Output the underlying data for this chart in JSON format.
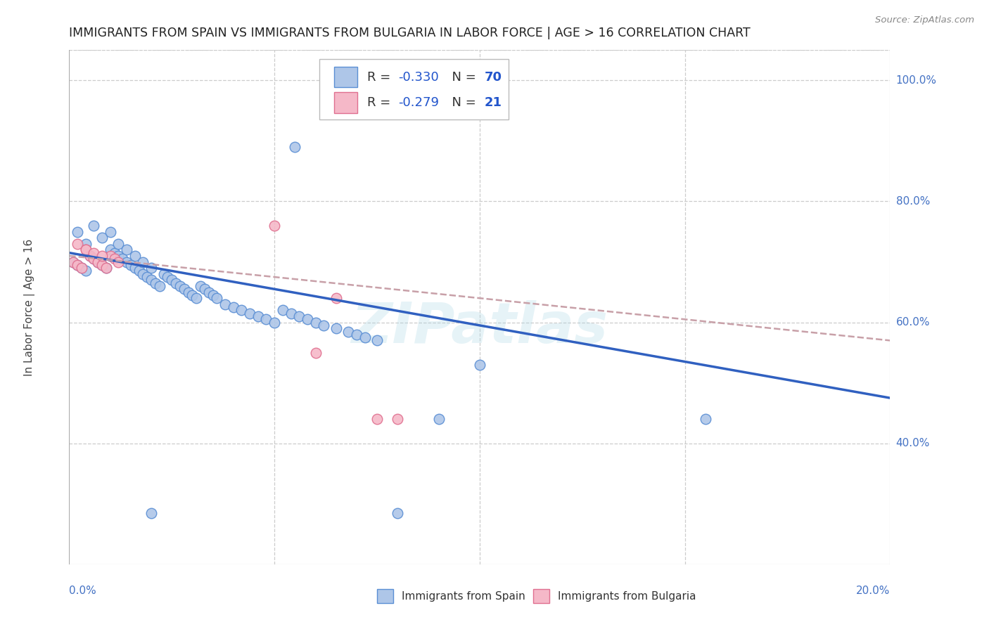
{
  "title": "IMMIGRANTS FROM SPAIN VS IMMIGRANTS FROM BULGARIA IN LABOR FORCE | AGE > 16 CORRELATION CHART",
  "source": "Source: ZipAtlas.com",
  "ylabel": "In Labor Force | Age > 16",
  "watermark": "ZIPatlas",
  "color_spain_fill": "#aec6e8",
  "color_spain_edge": "#5b8fd4",
  "color_bulgaria_fill": "#f5b8c8",
  "color_bulgaria_edge": "#e07090",
  "color_spain_line": "#3060c0",
  "color_bulgaria_line": "#ccaaaa",
  "color_axis_blue": "#4472c4",
  "color_grid": "#cccccc",
  "color_title": "#222222",
  "legend_r1": "-0.330",
  "legend_n1": "70",
  "legend_r2": "-0.279",
  "legend_n2": "21",
  "xlim": [
    0.0,
    0.2
  ],
  "ylim": [
    0.2,
    1.05
  ],
  "ytick_vals": [
    1.0,
    0.8,
    0.6,
    0.4
  ],
  "ytick_labels": [
    "100.0%",
    "80.0%",
    "60.0%",
    "40.0%"
  ],
  "xtick_vals": [
    0.0,
    0.05,
    0.1,
    0.15,
    0.2
  ],
  "xtick_labels_show": [
    "0.0%",
    "20.0%"
  ],
  "spain_x": [
    0.001,
    0.002,
    0.003,
    0.004,
    0.005,
    0.006,
    0.007,
    0.008,
    0.009,
    0.01,
    0.011,
    0.012,
    0.013,
    0.014,
    0.015,
    0.016,
    0.017,
    0.018,
    0.019,
    0.02,
    0.021,
    0.022,
    0.023,
    0.024,
    0.025,
    0.026,
    0.027,
    0.028,
    0.029,
    0.03,
    0.031,
    0.032,
    0.033,
    0.034,
    0.035,
    0.036,
    0.038,
    0.04,
    0.042,
    0.044,
    0.046,
    0.048,
    0.05,
    0.052,
    0.054,
    0.056,
    0.058,
    0.06,
    0.062,
    0.065,
    0.068,
    0.07,
    0.072,
    0.075,
    0.002,
    0.004,
    0.006,
    0.008,
    0.01,
    0.012,
    0.014,
    0.016,
    0.018,
    0.02,
    0.055,
    0.09,
    0.155,
    0.02,
    0.08,
    0.1
  ],
  "spain_y": [
    0.7,
    0.695,
    0.69,
    0.685,
    0.71,
    0.705,
    0.7,
    0.695,
    0.69,
    0.72,
    0.715,
    0.71,
    0.705,
    0.7,
    0.695,
    0.69,
    0.685,
    0.68,
    0.675,
    0.67,
    0.665,
    0.66,
    0.68,
    0.675,
    0.67,
    0.665,
    0.66,
    0.655,
    0.65,
    0.645,
    0.64,
    0.66,
    0.655,
    0.65,
    0.645,
    0.64,
    0.63,
    0.625,
    0.62,
    0.615,
    0.61,
    0.605,
    0.6,
    0.62,
    0.615,
    0.61,
    0.605,
    0.6,
    0.595,
    0.59,
    0.585,
    0.58,
    0.575,
    0.57,
    0.75,
    0.73,
    0.76,
    0.74,
    0.75,
    0.73,
    0.72,
    0.71,
    0.7,
    0.69,
    0.89,
    0.44,
    0.44,
    0.285,
    0.285,
    0.53
  ],
  "bulgaria_x": [
    0.001,
    0.002,
    0.003,
    0.004,
    0.005,
    0.006,
    0.007,
    0.008,
    0.009,
    0.01,
    0.011,
    0.012,
    0.002,
    0.004,
    0.006,
    0.008,
    0.05,
    0.06,
    0.065,
    0.075,
    0.08
  ],
  "bulgaria_y": [
    0.7,
    0.695,
    0.69,
    0.72,
    0.71,
    0.705,
    0.7,
    0.695,
    0.69,
    0.71,
    0.705,
    0.7,
    0.73,
    0.72,
    0.715,
    0.71,
    0.76,
    0.55,
    0.64,
    0.44,
    0.44
  ],
  "spain_line_x": [
    0.0,
    0.2
  ],
  "spain_line_y": [
    0.715,
    0.475
  ],
  "bulgaria_line_x": [
    0.0,
    0.2
  ],
  "bulgaria_line_y": [
    0.71,
    0.57
  ]
}
